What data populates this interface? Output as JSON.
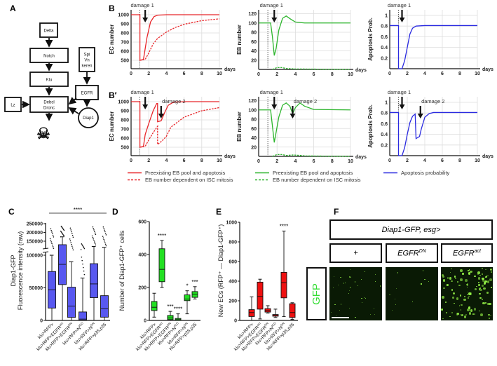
{
  "panel_labels": {
    "A": "A",
    "B": "B",
    "Bp": "B′",
    "C": "C",
    "D": "D",
    "E": "E",
    "F": "F"
  },
  "diagram": {
    "delta": "Delta",
    "notch": "Notch",
    "klu": "Klu",
    "debcl": "Debcl",
    "dronc": "Dronc",
    "lz": "Lz",
    "spi": "Spi",
    "vn": "Vn",
    "keren": "keren",
    "egfr": "EGFR",
    "diap1": "Diap1",
    "death_icon": "skull-crossbones-icon"
  },
  "legends": {
    "ec": [
      "Preexisting EB pool and apoptosis",
      "EB number dependent on ISC mitosis"
    ],
    "eb": [
      "Preexisting EB pool and apoptosis",
      "EB number dependent on ISC mitosis"
    ],
    "ap": [
      "Apoptosis probability"
    ]
  },
  "colors": {
    "ec": "#e8262a",
    "eb": "#2db52d",
    "ap": "#2a2ae0",
    "boxC": "#5858f0",
    "boxD": "#22e022",
    "boxE": "#ee1111",
    "gfp": "#33dd33"
  },
  "chart_data": [
    {
      "type": "line",
      "id": "B-EC",
      "row": "B",
      "ylabel": "EC number",
      "xlabel": "days",
      "xlim": [
        0,
        10
      ],
      "xticks": [
        0,
        2,
        4,
        6,
        8,
        10
      ],
      "yticks": [
        500,
        600,
        700,
        800,
        900,
        1000
      ],
      "arrows": [
        {
          "label": "damage 1",
          "x": 1.6
        }
      ],
      "damage_line_x": 1,
      "series": [
        {
          "name": "Preexisting EB pool and apoptosis",
          "style": "solid",
          "points": [
            [
              0,
              1000
            ],
            [
              1,
              1000
            ],
            [
              1,
              500
            ],
            [
              1.4,
              510
            ],
            [
              1.8,
              750
            ],
            [
              2.2,
              920
            ],
            [
              2.6,
              980
            ],
            [
              3,
              995
            ],
            [
              4,
              1000
            ],
            [
              10,
              1000
            ]
          ]
        },
        {
          "name": "EB number dependent on ISC mitosis",
          "style": "dashed",
          "points": [
            [
              1,
              500
            ],
            [
              1.6,
              510
            ],
            [
              2,
              580
            ],
            [
              2.5,
              680
            ],
            [
              3,
              740
            ],
            [
              4,
              810
            ],
            [
              5,
              860
            ],
            [
              6,
              895
            ],
            [
              8,
              935
            ],
            [
              10,
              955
            ]
          ]
        }
      ]
    },
    {
      "type": "line",
      "id": "B-EB",
      "row": "B",
      "ylabel": "EB number",
      "xlabel": "days",
      "xlim": [
        0,
        10
      ],
      "xticks": [
        0,
        2,
        4,
        6,
        8,
        10
      ],
      "yticks": [
        20,
        40,
        60,
        80,
        100,
        120
      ],
      "arrows": [
        {
          "label": "damage 1",
          "x": 1.7
        }
      ],
      "damage_line_x": 1,
      "series": [
        {
          "name": "Preexisting EB pool and apoptosis",
          "style": "solid",
          "points": [
            [
              0,
              100
            ],
            [
              1.3,
              100
            ],
            [
              1.5,
              70
            ],
            [
              1.7,
              30
            ],
            [
              1.9,
              45
            ],
            [
              2.2,
              85
            ],
            [
              2.6,
              110
            ],
            [
              3,
              115
            ],
            [
              3.5,
              108
            ],
            [
              4,
              102
            ],
            [
              5,
              100
            ],
            [
              10,
              100
            ]
          ]
        },
        {
          "name": "EB number dependent on ISC mitosis",
          "style": "dashed",
          "points": [
            [
              1.5,
              0
            ],
            [
              2,
              4
            ],
            [
              2.5,
              4
            ],
            [
              3,
              2
            ],
            [
              4,
              1
            ],
            [
              10,
              0
            ]
          ]
        }
      ]
    },
    {
      "type": "line",
      "id": "B-AP",
      "row": "B",
      "ylabel": "Apoptosis Prob.",
      "xlabel": "days",
      "xlim": [
        0,
        10
      ],
      "xticks": [
        0,
        2,
        4,
        6,
        8,
        10
      ],
      "yticks": [
        0.2,
        0.4,
        0.6,
        0.8,
        1.0
      ],
      "arrows": [
        {
          "label": "damage 1",
          "x": 1.4
        }
      ],
      "damage_line_x": 1,
      "series": [
        {
          "name": "Apoptosis probability",
          "style": "solid",
          "points": [
            [
              0,
              0.81
            ],
            [
              1,
              0.81
            ],
            [
              1,
              0
            ],
            [
              1.4,
              0
            ],
            [
              1.7,
              0.15
            ],
            [
              2,
              0.4
            ],
            [
              2.3,
              0.65
            ],
            [
              2.6,
              0.76
            ],
            [
              3,
              0.8
            ],
            [
              4,
              0.81
            ],
            [
              10,
              0.81
            ]
          ]
        }
      ]
    },
    {
      "type": "line",
      "id": "Bp-EC",
      "row": "Bp",
      "ylabel": "EC number",
      "xlabel": "days",
      "xlim": [
        0,
        10
      ],
      "xticks": [
        0,
        2,
        4,
        6,
        8,
        10
      ],
      "yticks": [
        500,
        600,
        700,
        800,
        900,
        1000
      ],
      "arrows": [
        {
          "label": "damage 1",
          "x": 1.6
        },
        {
          "label": "damage 2",
          "x": 3.4
        }
      ],
      "damage_line_x": 1,
      "series": [
        {
          "name": "Preexisting EB pool and apoptosis",
          "style": "solid",
          "points": [
            [
              0,
              1000
            ],
            [
              1,
              1000
            ],
            [
              1,
              500
            ],
            [
              1.4,
              510
            ],
            [
              1.6,
              640
            ],
            [
              2,
              760
            ],
            [
              2.5,
              900
            ],
            [
              2.9,
              980
            ],
            [
              3,
              980
            ],
            [
              3,
              780
            ],
            [
              3.4,
              790
            ],
            [
              3.8,
              880
            ],
            [
              4.2,
              960
            ],
            [
              4.8,
              995
            ],
            [
              6,
              1000
            ],
            [
              10,
              1000
            ]
          ]
        },
        {
          "name": "EB number dependent on ISC mitosis",
          "style": "dashed",
          "points": [
            [
              1,
              500
            ],
            [
              1.6,
              510
            ],
            [
              2,
              580
            ],
            [
              2.5,
              660
            ],
            [
              3,
              730
            ],
            [
              3,
              530
            ],
            [
              3.5,
              570
            ],
            [
              4,
              620
            ],
            [
              4.5,
              720
            ],
            [
              6,
              830
            ],
            [
              8,
              900
            ],
            [
              10,
              935
            ]
          ]
        }
      ]
    },
    {
      "type": "line",
      "id": "Bp-EB",
      "row": "Bp",
      "ylabel": "EB number",
      "xlabel": "days",
      "xlim": [
        0,
        10
      ],
      "xticks": [
        0,
        2,
        4,
        6,
        8,
        10
      ],
      "yticks": [
        20,
        40,
        60,
        80,
        100,
        120
      ],
      "arrows": [
        {
          "label": "damage 1",
          "x": 1.7
        },
        {
          "label": "damage 2",
          "x": 3.7
        }
      ],
      "damage_line_x": 1,
      "series": [
        {
          "name": "Preexisting EB pool and apoptosis",
          "style": "solid",
          "points": [
            [
              0,
              100
            ],
            [
              1.3,
              100
            ],
            [
              1.7,
              30
            ],
            [
              2.2,
              85
            ],
            [
              2.6,
              110
            ],
            [
              3,
              115
            ],
            [
              3.4,
              108
            ],
            [
              3.7,
              92
            ],
            [
              4,
              105
            ],
            [
              4.5,
              115
            ],
            [
              5,
              108
            ],
            [
              6,
              101
            ],
            [
              10,
              100
            ]
          ]
        },
        {
          "name": "EB number dependent on ISC mitosis",
          "style": "dashed",
          "points": [
            [
              1.5,
              0
            ],
            [
              2,
              4
            ],
            [
              2.5,
              4
            ],
            [
              3,
              2
            ],
            [
              3.8,
              3
            ],
            [
              4.5,
              2
            ],
            [
              5,
              1
            ],
            [
              10,
              0
            ]
          ]
        }
      ]
    },
    {
      "type": "line",
      "id": "Bp-AP",
      "row": "Bp",
      "ylabel": "Apoptosis Prob.",
      "xlabel": "days",
      "xlim": [
        0,
        10
      ],
      "xticks": [
        0,
        2,
        4,
        6,
        8,
        10
      ],
      "yticks": [
        0.2,
        0.4,
        0.6,
        0.8,
        1.0
      ],
      "arrows": [
        {
          "label": "damage 1",
          "x": 1.4
        },
        {
          "label": "damage 2",
          "x": 3.5
        }
      ],
      "damage_line_x": 1,
      "series": [
        {
          "name": "Apoptosis probability",
          "style": "solid",
          "points": [
            [
              0,
              0.81
            ],
            [
              1,
              0.81
            ],
            [
              1,
              0
            ],
            [
              1.4,
              0
            ],
            [
              1.7,
              0.15
            ],
            [
              2,
              0.4
            ],
            [
              2.3,
              0.62
            ],
            [
              2.6,
              0.74
            ],
            [
              2.9,
              0.78
            ],
            [
              3,
              0.32
            ],
            [
              3.4,
              0.36
            ],
            [
              3.6,
              0.5
            ],
            [
              4,
              0.72
            ],
            [
              4.5,
              0.79
            ],
            [
              5,
              0.81
            ],
            [
              10,
              0.81
            ]
          ]
        }
      ]
    },
    {
      "type": "box",
      "id": "C",
      "ylabel": [
        "Diap1-GFP",
        "Fluorescence intensity (raw)"
      ],
      "yticks": [
        0,
        50000,
        100000,
        150000,
        200000,
        250000
      ],
      "broken_axis": [
        100000,
        150000
      ],
      "significance": "****",
      "categories": [
        {
          "base": "klu>RFP>",
          "sup": ""
        },
        {
          "base": "klu>RFP>EGFR",
          "sup": "act"
        },
        {
          "base": "klu>RFP>EGFR",
          "sup": "DN"
        },
        {
          "base": "klu>RFP>N",
          "sup": "ICD"
        },
        {
          "base": "klu>RFP>N",
          "sup": "DN"
        },
        {
          "base": "klu>RFP>p35,p35",
          "sup": ""
        }
      ],
      "boxes": [
        [
          0,
          19000,
          47000,
          75000,
          100000
        ],
        [
          0,
          55000,
          86000,
          130000,
          175000
        ],
        [
          0,
          4600,
          22000,
          51000,
          90000
        ],
        [
          0,
          500,
          2000,
          13000,
          65000
        ],
        [
          0,
          35000,
          56000,
          87000,
          120000
        ],
        [
          0,
          5000,
          18000,
          38000,
          115000
        ]
      ],
      "outlier_max": [
        230000,
        240000,
        235000,
        140000,
        240000,
        240000
      ]
    },
    {
      "type": "box",
      "id": "D",
      "ylabel": "Number of Diap1-GFP⁺ cells",
      "yticks": [
        0,
        200,
        400,
        600
      ],
      "categories": [
        {
          "base": "klu>RFP>",
          "sup": ""
        },
        {
          "base": "klu>RFP>EGFR",
          "sup": "act"
        },
        {
          "base": "klu>RFP>EGFR",
          "sup": "DN"
        },
        {
          "base": "klu>RFP>N",
          "sup": "ICD"
        },
        {
          "base": "klu>RFP>N",
          "sup": "DN"
        },
        {
          "base": "klu>RFP>p35,p35",
          "sup": ""
        }
      ],
      "boxes": [
        [
          20,
          60,
          80,
          115,
          165
        ],
        [
          200,
          235,
          310,
          435,
          485
        ],
        [
          0,
          5,
          15,
          30,
          55
        ],
        [
          0,
          0,
          5,
          12,
          40
        ],
        [
          40,
          120,
          130,
          155,
          180
        ],
        [
          130,
          140,
          160,
          175,
          205
        ]
      ],
      "stars": [
        "",
        "****",
        "***",
        "****",
        "*",
        "***"
      ]
    },
    {
      "type": "box",
      "id": "E",
      "ylabel": "New ECs (RFP⁺ — Diap1-GFP⁺)",
      "yticks": [
        0,
        200,
        400,
        600,
        800,
        1000
      ],
      "categories": [
        {
          "base": "klu>RFP>",
          "sup": ""
        },
        {
          "base": "klu>RFP>EGFR",
          "sup": "act"
        },
        {
          "base": "klu>RFP>EGFR",
          "sup": "DN"
        },
        {
          "base": "klu>RFP>N",
          "sup": "ICD"
        },
        {
          "base": "klu>RFP>N",
          "sup": "DN"
        },
        {
          "base": "klu>RFP>p35,p35",
          "sup": ""
        }
      ],
      "boxes": [
        [
          0,
          40,
          80,
          110,
          240
        ],
        [
          15,
          115,
          245,
          390,
          420
        ],
        [
          75,
          85,
          100,
          120,
          150
        ],
        [
          30,
          43,
          55,
          60,
          115
        ],
        [
          40,
          230,
          385,
          490,
          910
        ],
        [
          10,
          30,
          80,
          170,
          180
        ]
      ],
      "stars": [
        "",
        "",
        "",
        "",
        "****",
        ""
      ]
    }
  ],
  "panelF": {
    "title": "Diap1-GFP, esg>",
    "columns": [
      {
        "base": "+",
        "sup": ""
      },
      {
        "base": "EGFR",
        "sup": "DN"
      },
      {
        "base": "EGFR",
        "sup": "act"
      }
    ],
    "row_label": "GFP",
    "relative_signal": [
      0.3,
      0.1,
      1.0
    ]
  }
}
